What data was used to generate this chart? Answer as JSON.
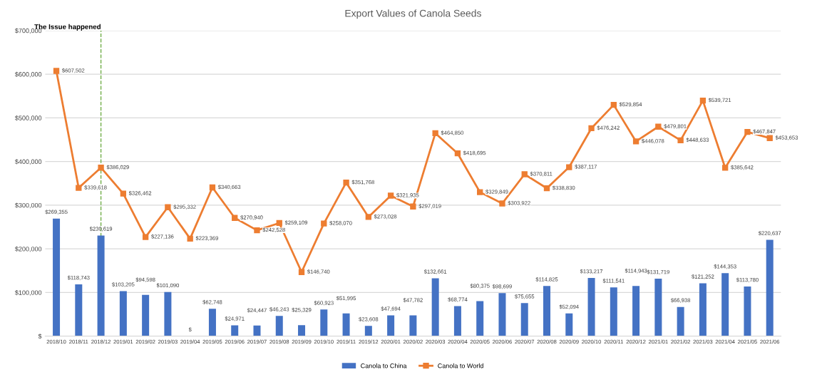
{
  "chart_data": {
    "type": "bar",
    "title": "Export Values of Canola Seeds",
    "categories": [
      "2018/10",
      "2018/11",
      "2018/12",
      "2019/01",
      "2019/02",
      "2019/03",
      "2019/04",
      "2019/05",
      "2019/06",
      "2019/07",
      "2019/08",
      "2019/09",
      "2019/10",
      "2019/11",
      "2019/12",
      "2020/01",
      "2020/02",
      "2020/03",
      "2020/04",
      "2020/05",
      "2020/06",
      "2020/07",
      "2020/08",
      "2020/09",
      "2020/10",
      "2020/11",
      "2020/12",
      "2021/01",
      "2021/02",
      "2021/03",
      "2021/04",
      "2021/05",
      "2021/06"
    ],
    "series": [
      {
        "name": "Canola to China",
        "color": "#4472c4",
        "values": [
          269355,
          118743,
          230619,
          103205,
          94598,
          101090,
          0,
          62748,
          24971,
          24447,
          46243,
          25329,
          60923,
          51995,
          23608,
          47694,
          47782,
          132661,
          68774,
          80375,
          98699,
          75655,
          114825,
          52094,
          133217,
          111541,
          114943,
          131719,
          66938,
          121252,
          144353,
          113780,
          220637
        ],
        "value_labels": [
          "$269,355",
          "$118,743",
          "$230,619",
          "$103,205",
          "$94,598",
          "$101,090",
          "$",
          "$62,748",
          "$24,971",
          "$24,447",
          "$46,243",
          "$25,329",
          "$60,923",
          "$51,995",
          "$23,608",
          "$47,694",
          "$47,782",
          "$132,661",
          "$68,774",
          "$80,375",
          "$98,699",
          "$75,655",
          "$114,825",
          "$52,094",
          "$133,217",
          "$111,541",
          "$114,943",
          "$131,719",
          "$66,938",
          "$121,252",
          "$144,353",
          "$113,780",
          "$220,637"
        ]
      },
      {
        "name": "Canola to World",
        "type": "line",
        "color": "#ed7d31",
        "marker": "square",
        "values": [
          607502,
          339618,
          386029,
          326462,
          227136,
          295332,
          223369,
          340663,
          270940,
          242528,
          259109,
          146740,
          258070,
          351768,
          273028,
          321935,
          297019,
          464850,
          418695,
          329849,
          303922,
          370811,
          338830,
          387117,
          476242,
          529854,
          446078,
          479801,
          448633,
          539721,
          385642,
          467847,
          453653
        ],
        "value_labels": [
          "$607,502",
          "$339,618",
          "$386,029",
          "$326,462",
          "$227,136",
          "$295,332",
          "$223,369",
          "$340,663",
          "$270,940",
          "$242,528",
          "$259,109",
          "$146,740",
          "$258,070",
          "$351,768",
          "$273,028",
          "$321,935",
          "$297,019",
          "$464,850",
          "$418,695",
          "$329,849",
          "$303,922",
          "$370,811",
          "$338,830",
          "$387,117",
          "$476,242",
          "$529,854",
          "$446,078",
          "$479,801",
          "$448,633",
          "$539,721",
          "$385,642",
          "$467,847",
          "$453,653"
        ]
      }
    ],
    "ylim": [
      0,
      700000
    ],
    "yticks": [
      {
        "value": 0,
        "label": "$"
      },
      {
        "value": 100000,
        "label": "$100,000"
      },
      {
        "value": 200000,
        "label": "$200,000"
      },
      {
        "value": 300000,
        "label": "$300,000"
      },
      {
        "value": 400000,
        "label": "$400,000"
      },
      {
        "value": 500000,
        "label": "$500,000"
      },
      {
        "value": 600000,
        "label": "$600,000"
      },
      {
        "value": 700000,
        "label": "$700,000"
      }
    ],
    "ref_lines": [
      {
        "axis": "x",
        "value": "2018/12",
        "label": "The Issue happened",
        "color": "#70ad47",
        "line_style": "dashed"
      }
    ],
    "grid": "y",
    "legend": "bottom"
  }
}
